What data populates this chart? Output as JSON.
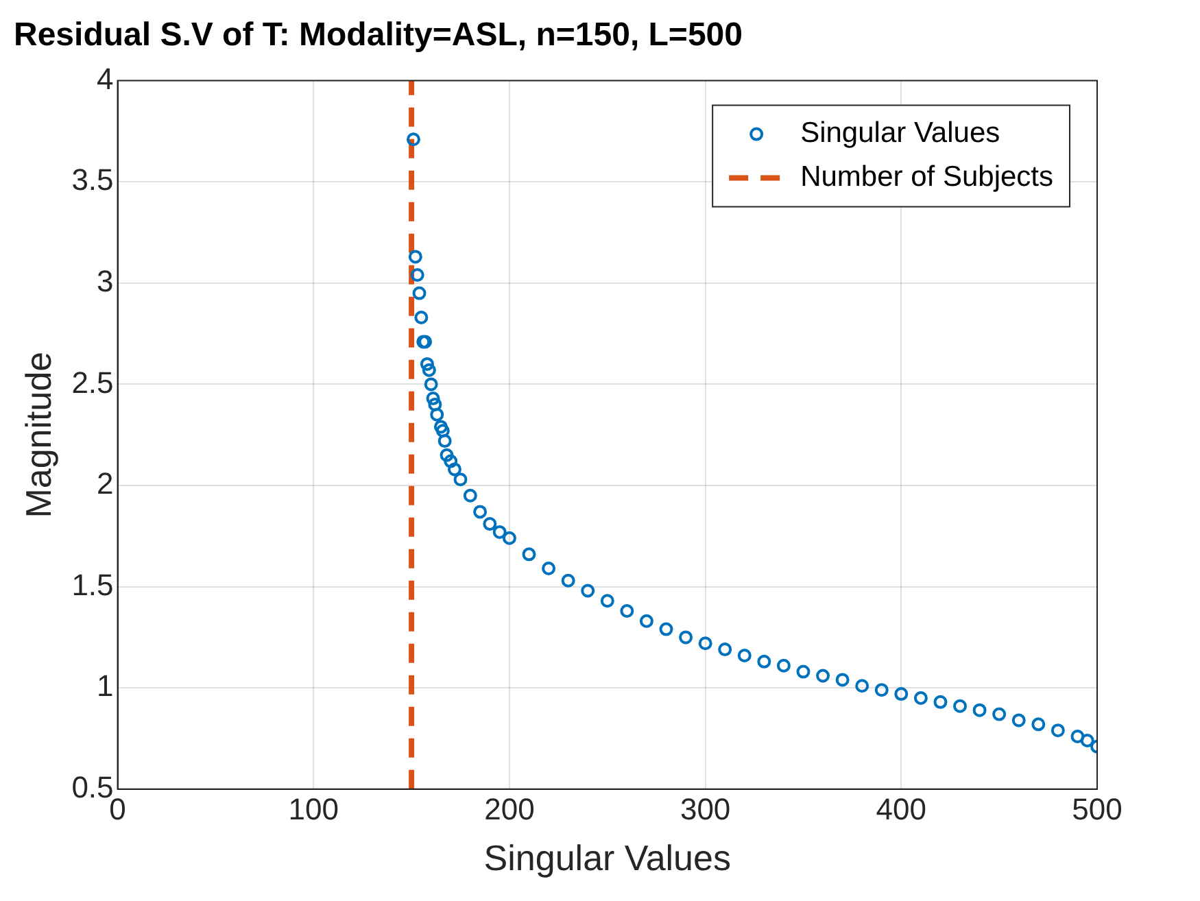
{
  "chart_data": {
    "type": "scatter",
    "title": "Residual S.V of T: Modality=ASL, n=150, L=500",
    "xlabel": "Singular Values",
    "ylabel": "Magnitude",
    "xlim": [
      0,
      500
    ],
    "xticks": [
      0,
      100,
      200,
      300,
      400,
      500
    ],
    "ylim": [
      0.5,
      4
    ],
    "yticks": [
      0.5,
      1,
      1.5,
      2,
      2.5,
      3,
      3.5,
      4
    ],
    "grid": true,
    "legend": "top right",
    "marker": "circle",
    "series": [
      {
        "name": "Singular Values",
        "type": "scatter",
        "color": "#0072bd",
        "x": [
          151,
          152,
          153,
          154,
          155,
          156,
          157,
          158,
          159,
          160,
          161,
          162,
          163,
          165,
          166,
          167,
          168,
          170,
          172,
          175,
          180,
          185,
          190,
          195,
          200,
          210,
          220,
          230,
          240,
          250,
          260,
          270,
          280,
          290,
          300,
          310,
          320,
          330,
          340,
          350,
          360,
          370,
          380,
          390,
          400,
          410,
          420,
          430,
          440,
          450,
          460,
          470,
          480,
          490,
          495,
          500
        ],
        "values": [
          3.71,
          3.13,
          3.04,
          2.95,
          2.83,
          2.71,
          2.71,
          2.6,
          2.57,
          2.5,
          2.43,
          2.4,
          2.35,
          2.29,
          2.27,
          2.22,
          2.15,
          2.12,
          2.08,
          2.03,
          1.95,
          1.87,
          1.81,
          1.77,
          1.74,
          1.66,
          1.59,
          1.53,
          1.48,
          1.43,
          1.38,
          1.33,
          1.29,
          1.25,
          1.22,
          1.19,
          1.16,
          1.13,
          1.11,
          1.08,
          1.06,
          1.04,
          1.01,
          0.99,
          0.97,
          0.95,
          0.93,
          0.91,
          0.89,
          0.87,
          0.84,
          0.82,
          0.79,
          0.76,
          0.74,
          0.71
        ]
      },
      {
        "name": "Number of Subjects",
        "type": "line",
        "marker": "none",
        "color": "#d95319",
        "line_style": "dashed",
        "x": [
          150,
          150
        ],
        "values": [
          0.5,
          4
        ]
      }
    ]
  }
}
